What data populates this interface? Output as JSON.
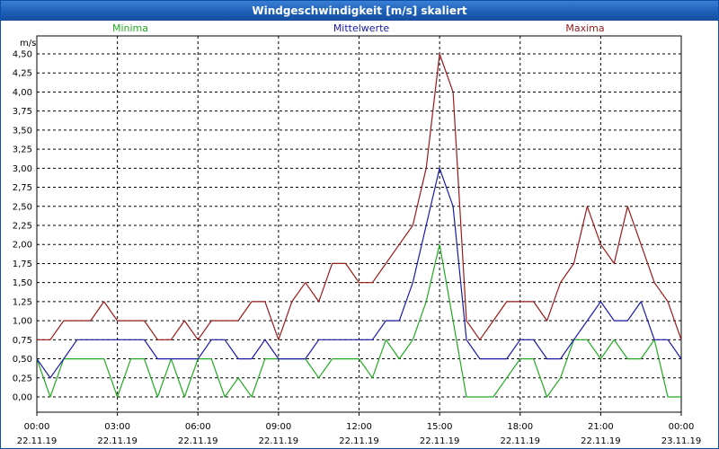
{
  "chart_data": {
    "type": "line",
    "title": "Windgeschwindigkeit [m/s] skaliert",
    "ylabel": "m/s",
    "xlabel": "",
    "ylim": [
      0,
      4.5
    ],
    "xlim_hours": [
      0,
      24
    ],
    "grid": true,
    "yticks": [
      "0,00",
      "0,25",
      "0,50",
      "0,75",
      "1,00",
      "1,25",
      "1,50",
      "1,75",
      "2,00",
      "2,25",
      "2,50",
      "2,75",
      "3,00",
      "3,25",
      "3,50",
      "3,75",
      "4,00",
      "4,25",
      "4,50"
    ],
    "xticks": [
      {
        "time": "00:00",
        "date": "22.11.19"
      },
      {
        "time": "03:00",
        "date": "22.11.19"
      },
      {
        "time": "06:00",
        "date": "22.11.19"
      },
      {
        "time": "09:00",
        "date": "22.11.19"
      },
      {
        "time": "12:00",
        "date": "22.11.19"
      },
      {
        "time": "15:00",
        "date": "22.11.19"
      },
      {
        "time": "18:00",
        "date": "22.11.19"
      },
      {
        "time": "21:00",
        "date": "22.11.19"
      },
      {
        "time": "00:00",
        "date": "23.11.19"
      }
    ],
    "x_hours": [
      0,
      0.5,
      1,
      1.5,
      2,
      2.5,
      3,
      3.5,
      4,
      4.5,
      5,
      5.5,
      6,
      6.5,
      7,
      7.5,
      8,
      8.5,
      9,
      9.5,
      10,
      10.5,
      11,
      11.5,
      12,
      12.5,
      13,
      13.5,
      14,
      14.5,
      15,
      15.5,
      16,
      16.5,
      17,
      17.5,
      18,
      18.5,
      19,
      19.5,
      20,
      20.5,
      21,
      21.5,
      22,
      22.5,
      23,
      23.5,
      24
    ],
    "series": [
      {
        "name": "Minima",
        "color": "#22aa22",
        "values": [
          0.5,
          0.0,
          0.5,
          0.5,
          0.5,
          0.5,
          0.0,
          0.5,
          0.5,
          0.0,
          0.5,
          0.0,
          0.5,
          0.5,
          0.0,
          0.25,
          0.0,
          0.5,
          0.5,
          0.5,
          0.5,
          0.25,
          0.5,
          0.5,
          0.5,
          0.25,
          0.75,
          0.5,
          0.75,
          1.25,
          2.0,
          1.0,
          0.0,
          0.0,
          0.0,
          0.25,
          0.5,
          0.5,
          0.0,
          0.25,
          0.75,
          0.75,
          0.5,
          0.75,
          0.5,
          0.5,
          0.75,
          0.0,
          0.0
        ]
      },
      {
        "name": "Mittelwerte",
        "color": "#1a1aaa",
        "values": [
          0.5,
          0.25,
          0.5,
          0.75,
          0.75,
          0.75,
          0.75,
          0.75,
          0.75,
          0.5,
          0.5,
          0.5,
          0.5,
          0.75,
          0.75,
          0.5,
          0.5,
          0.75,
          0.5,
          0.5,
          0.5,
          0.75,
          0.75,
          0.75,
          0.75,
          0.75,
          1.0,
          1.0,
          1.5,
          2.25,
          3.0,
          2.5,
          0.75,
          0.5,
          0.5,
          0.5,
          0.75,
          0.75,
          0.5,
          0.5,
          0.75,
          1.0,
          1.25,
          1.0,
          1.0,
          1.25,
          0.75,
          0.75,
          0.5
        ]
      },
      {
        "name": "Maxima",
        "color": "#991a1a",
        "values": [
          0.75,
          0.75,
          1.0,
          1.0,
          1.0,
          1.25,
          1.0,
          1.0,
          1.0,
          0.75,
          0.75,
          1.0,
          0.75,
          1.0,
          1.0,
          1.0,
          1.25,
          1.25,
          0.75,
          1.25,
          1.5,
          1.25,
          1.75,
          1.75,
          1.5,
          1.5,
          1.75,
          2.0,
          2.25,
          3.0,
          4.5,
          4.0,
          1.0,
          0.75,
          1.0,
          1.25,
          1.25,
          1.25,
          1.0,
          1.5,
          1.75,
          2.5,
          2.0,
          1.75,
          2.5,
          2.0,
          1.5,
          1.25,
          0.75
        ]
      }
    ]
  }
}
